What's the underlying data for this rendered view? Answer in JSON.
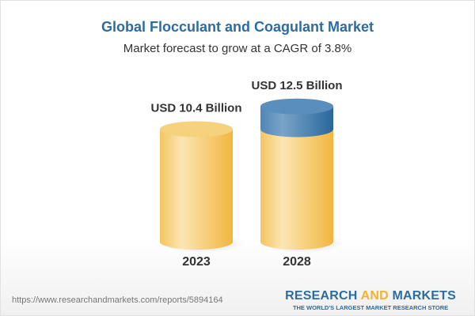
{
  "chart_data": {
    "type": "bar",
    "title": "Global Flocculant and Coagulant Market",
    "subtitle": "Market forecast to grow at a CAGR of 3.8%",
    "categories": [
      "2023",
      "2028"
    ],
    "values": [
      10.4,
      12.5
    ],
    "data_labels": [
      "USD 10.4 Billion",
      "USD 12.5 Billion"
    ],
    "unit": "USD Billion",
    "style": "3d-cylinder",
    "colors": {
      "bar": "#f5c660",
      "growth": "#4a82b4",
      "title": "#2b6ca3"
    }
  },
  "footer": {
    "url": "https://www.researchandmarkets.com/reports/5894164",
    "logo_part1": "RESEARCH ",
    "logo_part2": "AND",
    "logo_part3": " MARKETS",
    "tagline": "THE WORLD'S LARGEST MARKET RESEARCH STORE"
  }
}
